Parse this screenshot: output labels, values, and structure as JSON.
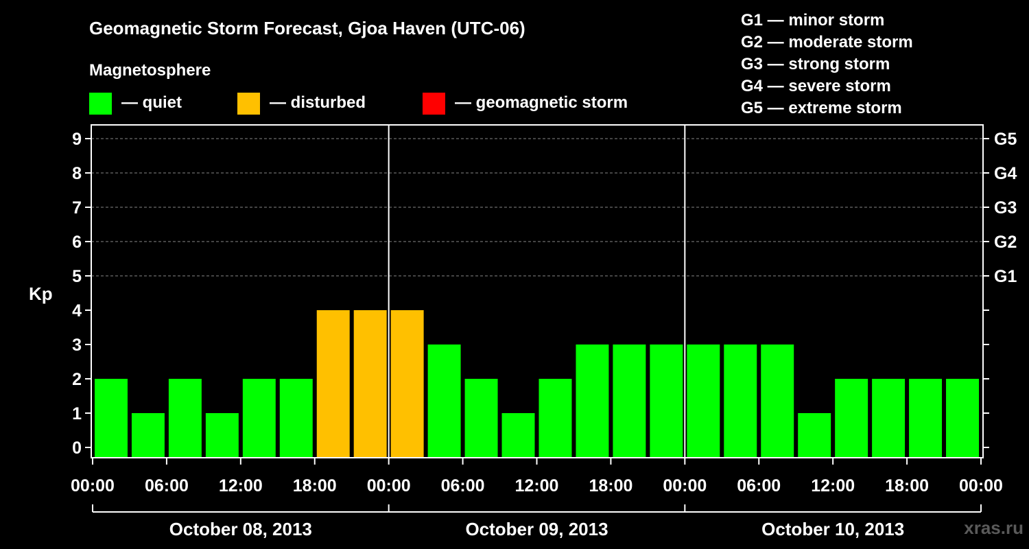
{
  "title": "Geomagnetic Storm Forecast, Gjoa Haven (UTC-06)",
  "magnetosphere_label": "Magnetosphere",
  "legend": [
    {
      "label": "— quiet",
      "color": "#00ff00"
    },
    {
      "label": "— disturbed",
      "color": "#ffc000"
    },
    {
      "label": "— geomagnetic storm",
      "color": "#ff0000"
    }
  ],
  "storm_scale": [
    "G1 — minor storm",
    "G2 — moderate storm",
    "G3 — strong storm",
    "G4 — severe storm",
    "G5 — extreme storm"
  ],
  "watermark": "xras.ru",
  "chart_data": {
    "type": "bar",
    "ylabel": "Kp",
    "ylim": [
      0,
      9
    ],
    "yticks": [
      "0",
      "1",
      "2",
      "3",
      "4",
      "5",
      "6",
      "7",
      "8",
      "9"
    ],
    "right_axis_labels": [
      {
        "kp": 5,
        "label": "G1"
      },
      {
        "kp": 6,
        "label": "G2"
      },
      {
        "kp": 7,
        "label": "G3"
      },
      {
        "kp": 8,
        "label": "G4"
      },
      {
        "kp": 9,
        "label": "G5"
      }
    ],
    "xtick_labels": [
      "00:00",
      "06:00",
      "12:00",
      "18:00",
      "00:00",
      "06:00",
      "12:00",
      "18:00",
      "00:00",
      "06:00",
      "12:00",
      "18:00",
      "00:00"
    ],
    "days": [
      "October 08, 2013",
      "October 09, 2013",
      "October 10, 2013"
    ],
    "interval_hours": 3,
    "values": [
      2,
      1,
      2,
      1,
      2,
      2,
      4,
      4,
      4,
      3,
      2,
      1,
      2,
      3,
      3,
      3,
      3,
      3,
      3,
      1,
      2,
      2,
      2,
      2
    ],
    "levels": [
      "quiet",
      "quiet",
      "quiet",
      "quiet",
      "quiet",
      "quiet",
      "disturbed",
      "disturbed",
      "disturbed",
      "quiet",
      "quiet",
      "quiet",
      "quiet",
      "quiet",
      "quiet",
      "quiet",
      "quiet",
      "quiet",
      "quiet",
      "quiet",
      "quiet",
      "quiet",
      "quiet",
      "quiet"
    ],
    "colors": {
      "quiet": "#00ff00",
      "disturbed": "#ffc000",
      "storm": "#ff0000"
    },
    "grid": true
  }
}
